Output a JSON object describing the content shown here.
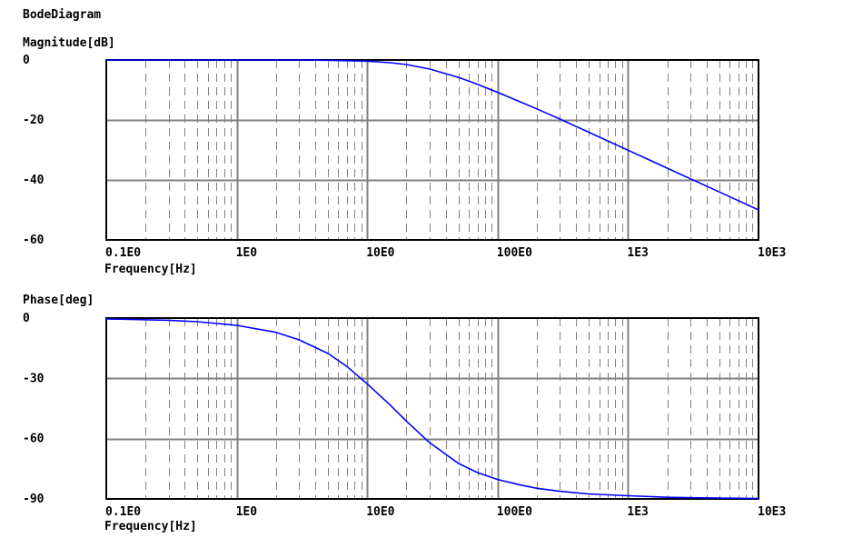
{
  "title": "BodeDiagram",
  "colors": {
    "curve": "#0000ff",
    "grid_major": "#808080",
    "grid_minor": "#808080",
    "axes": "#000000",
    "background": "#ffffff"
  },
  "chart_data": [
    {
      "type": "line",
      "title": "Magnitude[dB]",
      "ylabel": "Magnitude[dB]",
      "xlabel": "Frequency[Hz]",
      "x_scale": "log",
      "xlim": [
        0.1,
        10000
      ],
      "ylim": [
        -60,
        0
      ],
      "x_ticks": [
        0.1,
        1,
        10,
        100,
        1000,
        10000
      ],
      "x_tick_labels": [
        "0.1E0",
        "1E0",
        "10E0",
        "100E0",
        "1E3",
        "10E3"
      ],
      "y_ticks": [
        0,
        -20,
        -40,
        -60
      ],
      "y_tick_labels": [
        "0",
        "-20",
        "-40",
        "-60"
      ],
      "grid": true,
      "series": [
        {
          "x": [
            0.1,
            0.3,
            1,
            3,
            5,
            10,
            15,
            20,
            30,
            50,
            70,
            100,
            150,
            200,
            300,
            500,
            700,
            1000,
            1500,
            2000,
            3000,
            5000,
            7000,
            10000
          ],
          "y": [
            0,
            0,
            0,
            0,
            -0.1,
            -0.4,
            -0.9,
            -1.5,
            -3.0,
            -5.8,
            -8.1,
            -10.8,
            -14.0,
            -16.3,
            -19.7,
            -24.1,
            -27.0,
            -30.1,
            -33.6,
            -36.1,
            -39.6,
            -44.0,
            -46.9,
            -50.0
          ]
        }
      ]
    },
    {
      "type": "line",
      "title": "Phase[deg]",
      "ylabel": "Phase[deg]",
      "xlabel": "Frequency[Hz]",
      "x_scale": "log",
      "xlim": [
        0.1,
        10000
      ],
      "ylim": [
        -90,
        0
      ],
      "x_ticks": [
        0.1,
        1,
        10,
        100,
        1000,
        10000
      ],
      "x_tick_labels": [
        "0.1E0",
        "1E0",
        "10E0",
        "100E0",
        "1E3",
        "10E3"
      ],
      "y_ticks": [
        0,
        -30,
        -60,
        -90
      ],
      "y_tick_labels": [
        "0",
        "-30",
        "-60",
        "-90"
      ],
      "grid": true,
      "series": [
        {
          "x": [
            0.1,
            0.3,
            0.5,
            1,
            2,
            3,
            5,
            7,
            10,
            15,
            20,
            30,
            50,
            70,
            100,
            150,
            200,
            300,
            500,
            1000,
            2000,
            5000,
            10000
          ],
          "y": [
            -0.4,
            -1.1,
            -1.8,
            -3.6,
            -7.1,
            -10.8,
            -17.6,
            -24.1,
            -32.7,
            -43.3,
            -51.3,
            -61.9,
            -72.3,
            -76.9,
            -80.3,
            -83.1,
            -84.7,
            -86.2,
            -87.5,
            -88.4,
            -89.2,
            -89.6,
            -89.8
          ]
        }
      ]
    }
  ]
}
